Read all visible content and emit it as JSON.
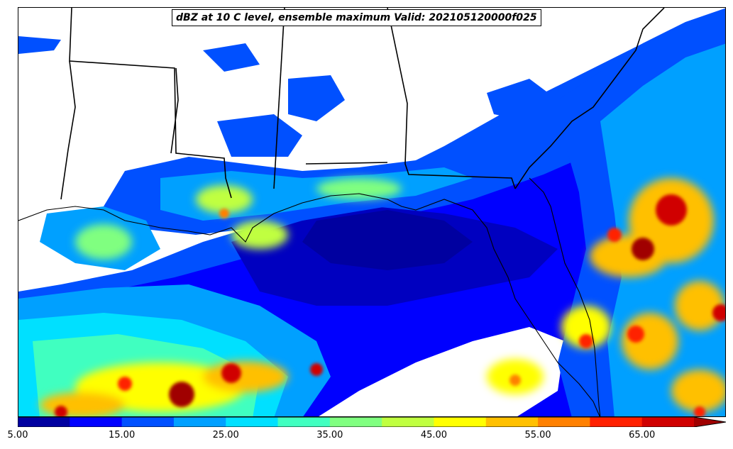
{
  "title": "dBZ at 10 C level, ensemble maximum Valid: 202105120000f025",
  "colorbar": {
    "min": 5,
    "max": 70,
    "step": 5,
    "extend": "max",
    "colors": [
      "#0000a0",
      "#0000ff",
      "#0050ff",
      "#00a0ff",
      "#00e0ff",
      "#40ffc0",
      "#80ff80",
      "#c0ff40",
      "#ffff00",
      "#ffc000",
      "#ff8000",
      "#ff2000",
      "#d00000",
      "#a00000"
    ],
    "tick_labels": [
      "5.00",
      "15.00",
      "25.00",
      "35.00",
      "45.00",
      "55.00",
      "65.00"
    ]
  }
}
